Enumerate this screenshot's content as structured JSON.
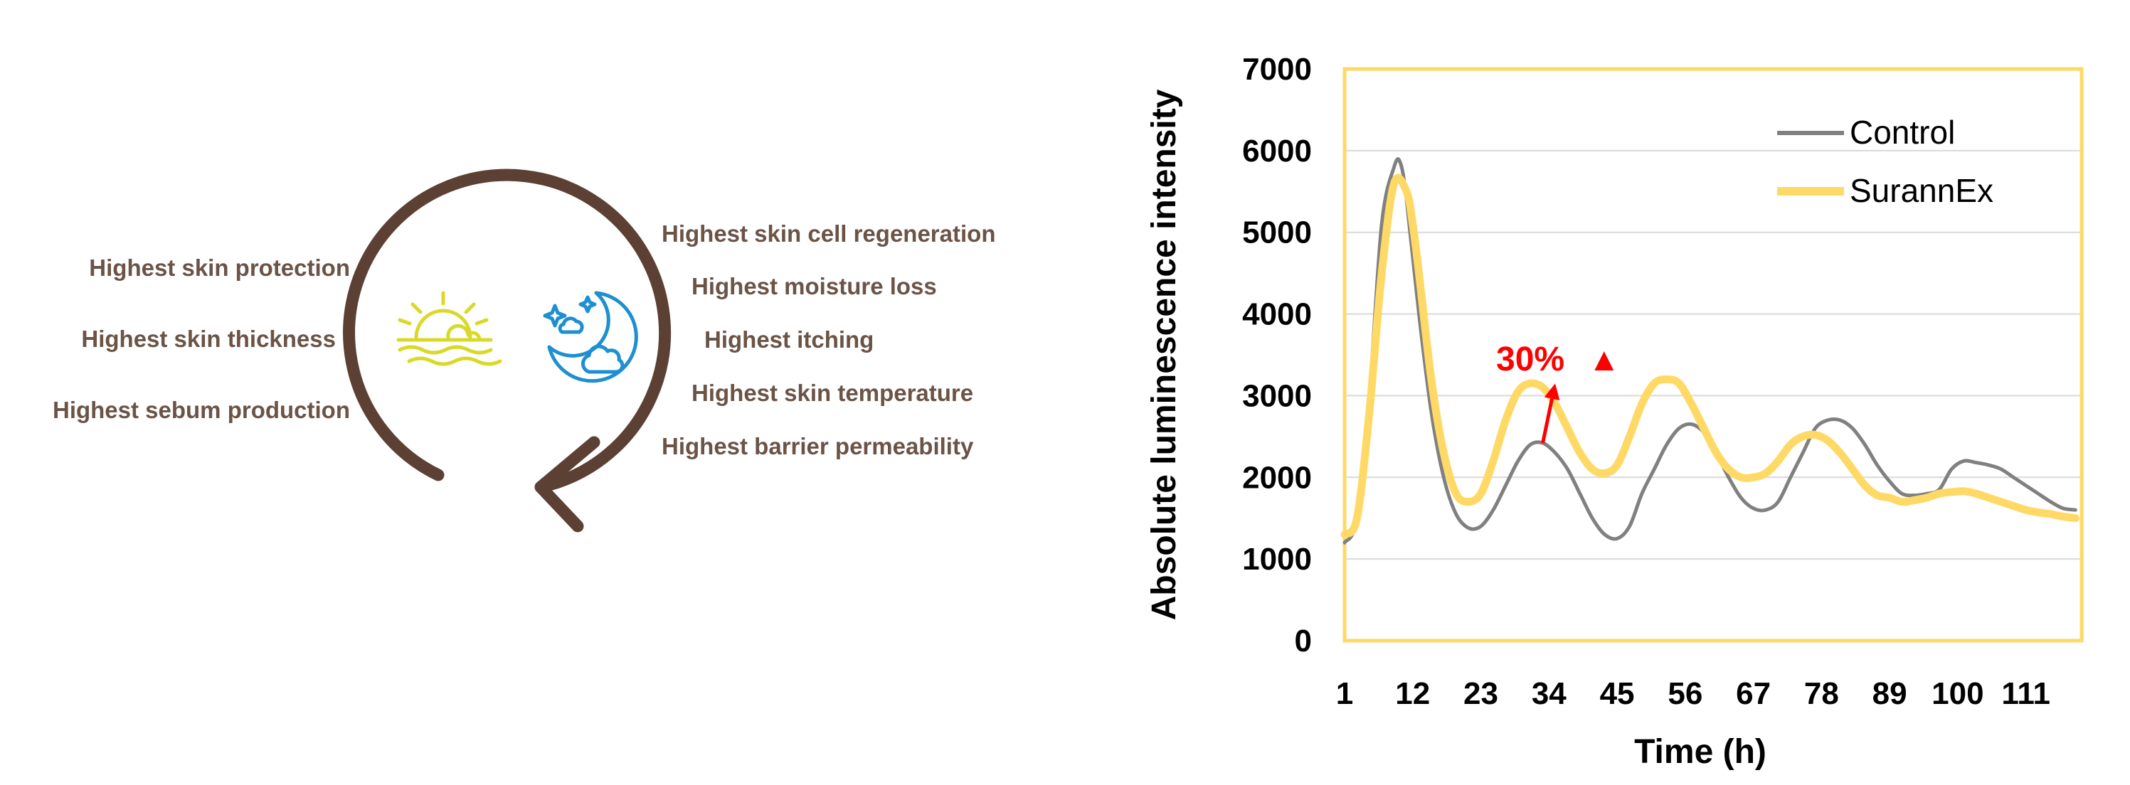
{
  "diagram": {
    "left_labels": [
      "Highest skin protection",
      "Highest skin thickness",
      "Highest sebum production"
    ],
    "right_labels": [
      "Highest skin cell regeneration",
      "Highest moisture loss",
      "Highest itching",
      "Highest skin temperature",
      "Highest barrier permeability"
    ],
    "colors": {
      "arrow": "#5c4033",
      "label": "#6b5346",
      "sun": "#d9d92a",
      "moon": "#1e8fd0"
    },
    "icons": [
      "sunrise-icon",
      "moon-cloud-icon"
    ]
  },
  "chart_data": {
    "type": "line",
    "xlabel": "Time (h)",
    "ylabel": "Absolute luminescence intensity",
    "ylim": [
      0,
      7000
    ],
    "xlim": [
      1,
      120
    ],
    "yticks": [
      0,
      1000,
      2000,
      3000,
      4000,
      5000,
      6000,
      7000
    ],
    "xticks": [
      1,
      12,
      23,
      34,
      45,
      56,
      67,
      78,
      89,
      100,
      111
    ],
    "grid": true,
    "legend_position": "top-right",
    "series": [
      {
        "name": "Control",
        "color": "#808080",
        "x": [
          1,
          3,
          5,
          7,
          9,
          10,
          11,
          13,
          15,
          17,
          19,
          21,
          23,
          25,
          27,
          29,
          31,
          33,
          35,
          37,
          39,
          41,
          43,
          45,
          47,
          49,
          51,
          53,
          55,
          57,
          59,
          61,
          63,
          65,
          67,
          69,
          71,
          73,
          75,
          77,
          79,
          81,
          83,
          85,
          87,
          89,
          91,
          93,
          95,
          97,
          99,
          101,
          103,
          105,
          107,
          109,
          111,
          113,
          115,
          117,
          119
        ],
        "values": [
          1200,
          1500,
          3000,
          5100,
          5800,
          5850,
          5400,
          4000,
          2800,
          2000,
          1550,
          1380,
          1400,
          1600,
          1900,
          2200,
          2400,
          2420,
          2300,
          2100,
          1800,
          1500,
          1300,
          1250,
          1400,
          1800,
          2100,
          2400,
          2600,
          2650,
          2550,
          2300,
          2000,
          1750,
          1620,
          1600,
          1700,
          2000,
          2300,
          2600,
          2700,
          2700,
          2600,
          2400,
          2150,
          1950,
          1800,
          1780,
          1800,
          1850,
          2100,
          2200,
          2180,
          2150,
          2100,
          2000,
          1900,
          1800,
          1700,
          1620,
          1600
        ]
      },
      {
        "name": "SurannEx",
        "color": "#ffd966",
        "x": [
          1,
          3,
          5,
          7,
          9,
          11,
          12,
          13,
          15,
          17,
          19,
          21,
          23,
          25,
          27,
          29,
          31,
          33,
          35,
          37,
          39,
          41,
          43,
          45,
          47,
          49,
          51,
          53,
          55,
          57,
          59,
          61,
          63,
          65,
          67,
          69,
          71,
          73,
          75,
          77,
          79,
          81,
          83,
          85,
          87,
          89,
          91,
          93,
          95,
          97,
          99,
          101,
          103,
          105,
          107,
          109,
          111,
          113,
          115,
          117,
          119
        ],
        "values": [
          1300,
          1500,
          2800,
          4500,
          5600,
          5500,
          5100,
          4500,
          3200,
          2300,
          1800,
          1700,
          1800,
          2200,
          2700,
          3050,
          3150,
          3100,
          2900,
          2600,
          2300,
          2100,
          2050,
          2150,
          2500,
          2900,
          3150,
          3200,
          3150,
          2900,
          2600,
          2300,
          2100,
          2000,
          2000,
          2050,
          2200,
          2400,
          2500,
          2520,
          2450,
          2300,
          2100,
          1900,
          1780,
          1750,
          1700,
          1720,
          1750,
          1800,
          1820,
          1830,
          1800,
          1750,
          1700,
          1650,
          1600,
          1570,
          1550,
          1520,
          1500
        ]
      }
    ],
    "annotation": {
      "text": "30%",
      "marker": "▲",
      "color": "#ff0000",
      "from": [
        33,
        2420
      ],
      "to": [
        35,
        3150
      ]
    }
  }
}
